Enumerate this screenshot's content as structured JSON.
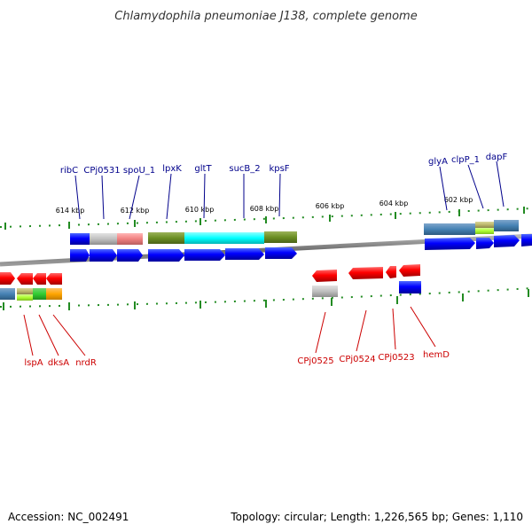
{
  "title": "Chlamydophila pneumoniae J138, complete genome",
  "footer": {
    "accession": "Accession: NC_002491",
    "summary": "Topology: circular; Length: 1,226,565 bp; Genes: 1,110"
  },
  "ticks": [
    "614 kbp",
    "612 kbp",
    "610 kbp",
    "608 kbp",
    "606 kbp",
    "604 kbp",
    "602 kbp"
  ],
  "genes_top": [
    "ribC",
    "CPj0531",
    "spoU_1",
    "lpxK",
    "gltT",
    "sucB_2",
    "kpsF",
    "glyA",
    "clpP_1",
    "dapF"
  ],
  "genes_bottom": [
    "lspA",
    "dksA",
    "nrdR",
    "CPj0525",
    "CPj0524",
    "CPj0523",
    "hemD"
  ],
  "colors": {
    "forward_strand": "#0000ff",
    "reverse_strand": "#ff0000",
    "top_label": "#00008b",
    "bottom_label": "#cc0000",
    "tick": "#228b22",
    "backbone": "#808080"
  }
}
